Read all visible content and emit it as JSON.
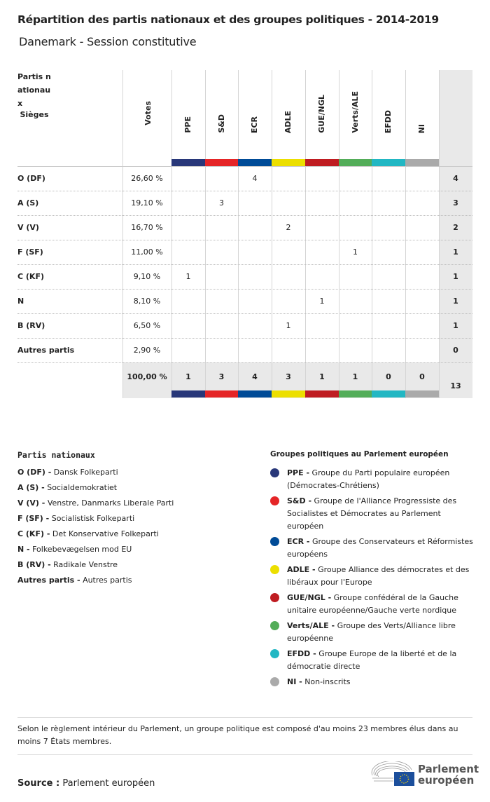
{
  "title": "Répartition des partis nationaux et des groupes politiques - 2014-2019",
  "subtitle": "Danemark - Session constitutive",
  "table": {
    "party_header": "Partis nationau x",
    "votes_header": "Votes",
    "seats_header": "Sièges",
    "groups": [
      {
        "name": "PPE",
        "color": "#283779"
      },
      {
        "name": "S&D",
        "color": "#e52527"
      },
      {
        "name": "ECR",
        "color": "#004b97"
      },
      {
        "name": "ADLE",
        "color": "#ecdf00"
      },
      {
        "name": "GUE/NGL",
        "color": "#bf1c21"
      },
      {
        "name": "Verts/ALE",
        "color": "#53ad59"
      },
      {
        "name": "EFDD",
        "color": "#22b7c3"
      },
      {
        "name": "NI",
        "color": "#aaaaaa"
      }
    ],
    "rows": [
      {
        "party": "O (DF)",
        "votes": "26,60 %",
        "seats_by_group": [
          "",
          "",
          "4",
          "",
          "",
          "",
          "",
          ""
        ],
        "seats": "4"
      },
      {
        "party": "A (S)",
        "votes": "19,10 %",
        "seats_by_group": [
          "",
          "3",
          "",
          "",
          "",
          "",
          "",
          ""
        ],
        "seats": "3"
      },
      {
        "party": "V (V)",
        "votes": "16,70 %",
        "seats_by_group": [
          "",
          "",
          "",
          "2",
          "",
          "",
          "",
          ""
        ],
        "seats": "2"
      },
      {
        "party": "F (SF)",
        "votes": "11,00 %",
        "seats_by_group": [
          "",
          "",
          "",
          "",
          "",
          "1",
          "",
          ""
        ],
        "seats": "1"
      },
      {
        "party": "C (KF)",
        "votes": "9,10 %",
        "seats_by_group": [
          "1",
          "",
          "",
          "",
          "",
          "",
          "",
          ""
        ],
        "seats": "1"
      },
      {
        "party": "N",
        "votes": "8,10 %",
        "seats_by_group": [
          "",
          "",
          "",
          "",
          "1",
          "",
          "",
          ""
        ],
        "seats": "1"
      },
      {
        "party": "B (RV)",
        "votes": "6,50 %",
        "seats_by_group": [
          "",
          "",
          "",
          "1",
          "",
          "",
          "",
          ""
        ],
        "seats": "1"
      },
      {
        "party": "Autres partis",
        "votes": "2,90 %",
        "seats_by_group": [
          "",
          "",
          "",
          "",
          "",
          "",
          "",
          ""
        ],
        "seats": "0"
      }
    ],
    "totals": {
      "votes": "100,00 %",
      "groups": [
        "1",
        "3",
        "4",
        "3",
        "1",
        "1",
        "0",
        "0"
      ],
      "seats": "13"
    }
  },
  "national_legend": {
    "title": "Partis nationaux",
    "items": [
      {
        "abbr": "O (DF) -",
        "name": "Dansk Folkeparti"
      },
      {
        "abbr": "A (S) -",
        "name": "Socialdemokratiet"
      },
      {
        "abbr": "V (V) -",
        "name": "Venstre, Danmarks Liberale Parti"
      },
      {
        "abbr": "F (SF) -",
        "name": "Socialistisk Folkeparti"
      },
      {
        "abbr": "C (KF) -",
        "name": " Det Konservative Folkeparti"
      },
      {
        "abbr": "N -",
        "name": "Folkebevægelsen mod EU"
      },
      {
        "abbr": "B (RV) -",
        "name": "Radikale Venstre"
      },
      {
        "abbr": "Autres partis -",
        "name": "Autres partis"
      }
    ]
  },
  "group_legend": {
    "title": "Groupes politiques au Parlement européen",
    "items": [
      {
        "abbr": "PPE -",
        "name": "Groupe du Parti populaire européen (Démocrates-Chrétiens)"
      },
      {
        "abbr": "S&D -",
        "name": "Groupe de l'Alliance Progressiste des Socialistes et Démocrates au Parlement européen"
      },
      {
        "abbr": "ECR -",
        "name": "Groupe des Conservateurs et Réformistes européens"
      },
      {
        "abbr": "ADLE -",
        "name": "Groupe Alliance des démocrates et des libéraux pour l'Europe"
      },
      {
        "abbr": "GUE/NGL -",
        "name": "Groupe confédéral de la Gauche unitaire européenne/Gauche verte nordique"
      },
      {
        "abbr": "Verts/ALE -",
        "name": "Groupe des Verts/Alliance libre européenne"
      },
      {
        "abbr": "EFDD -",
        "name": "Groupe Europe de la liberté et de la démocratie directe"
      },
      {
        "abbr": "NI -",
        "name": "Non-inscrits"
      }
    ]
  },
  "note": "Selon le règlement intérieur du Parlement, un groupe politique est composé d'au moins 23 membres élus dans au moins 7 États membres.",
  "source": {
    "label": "Source :",
    "value": "Parlement européen"
  },
  "logo": {
    "line1": "Parlement",
    "line2": "européen"
  }
}
